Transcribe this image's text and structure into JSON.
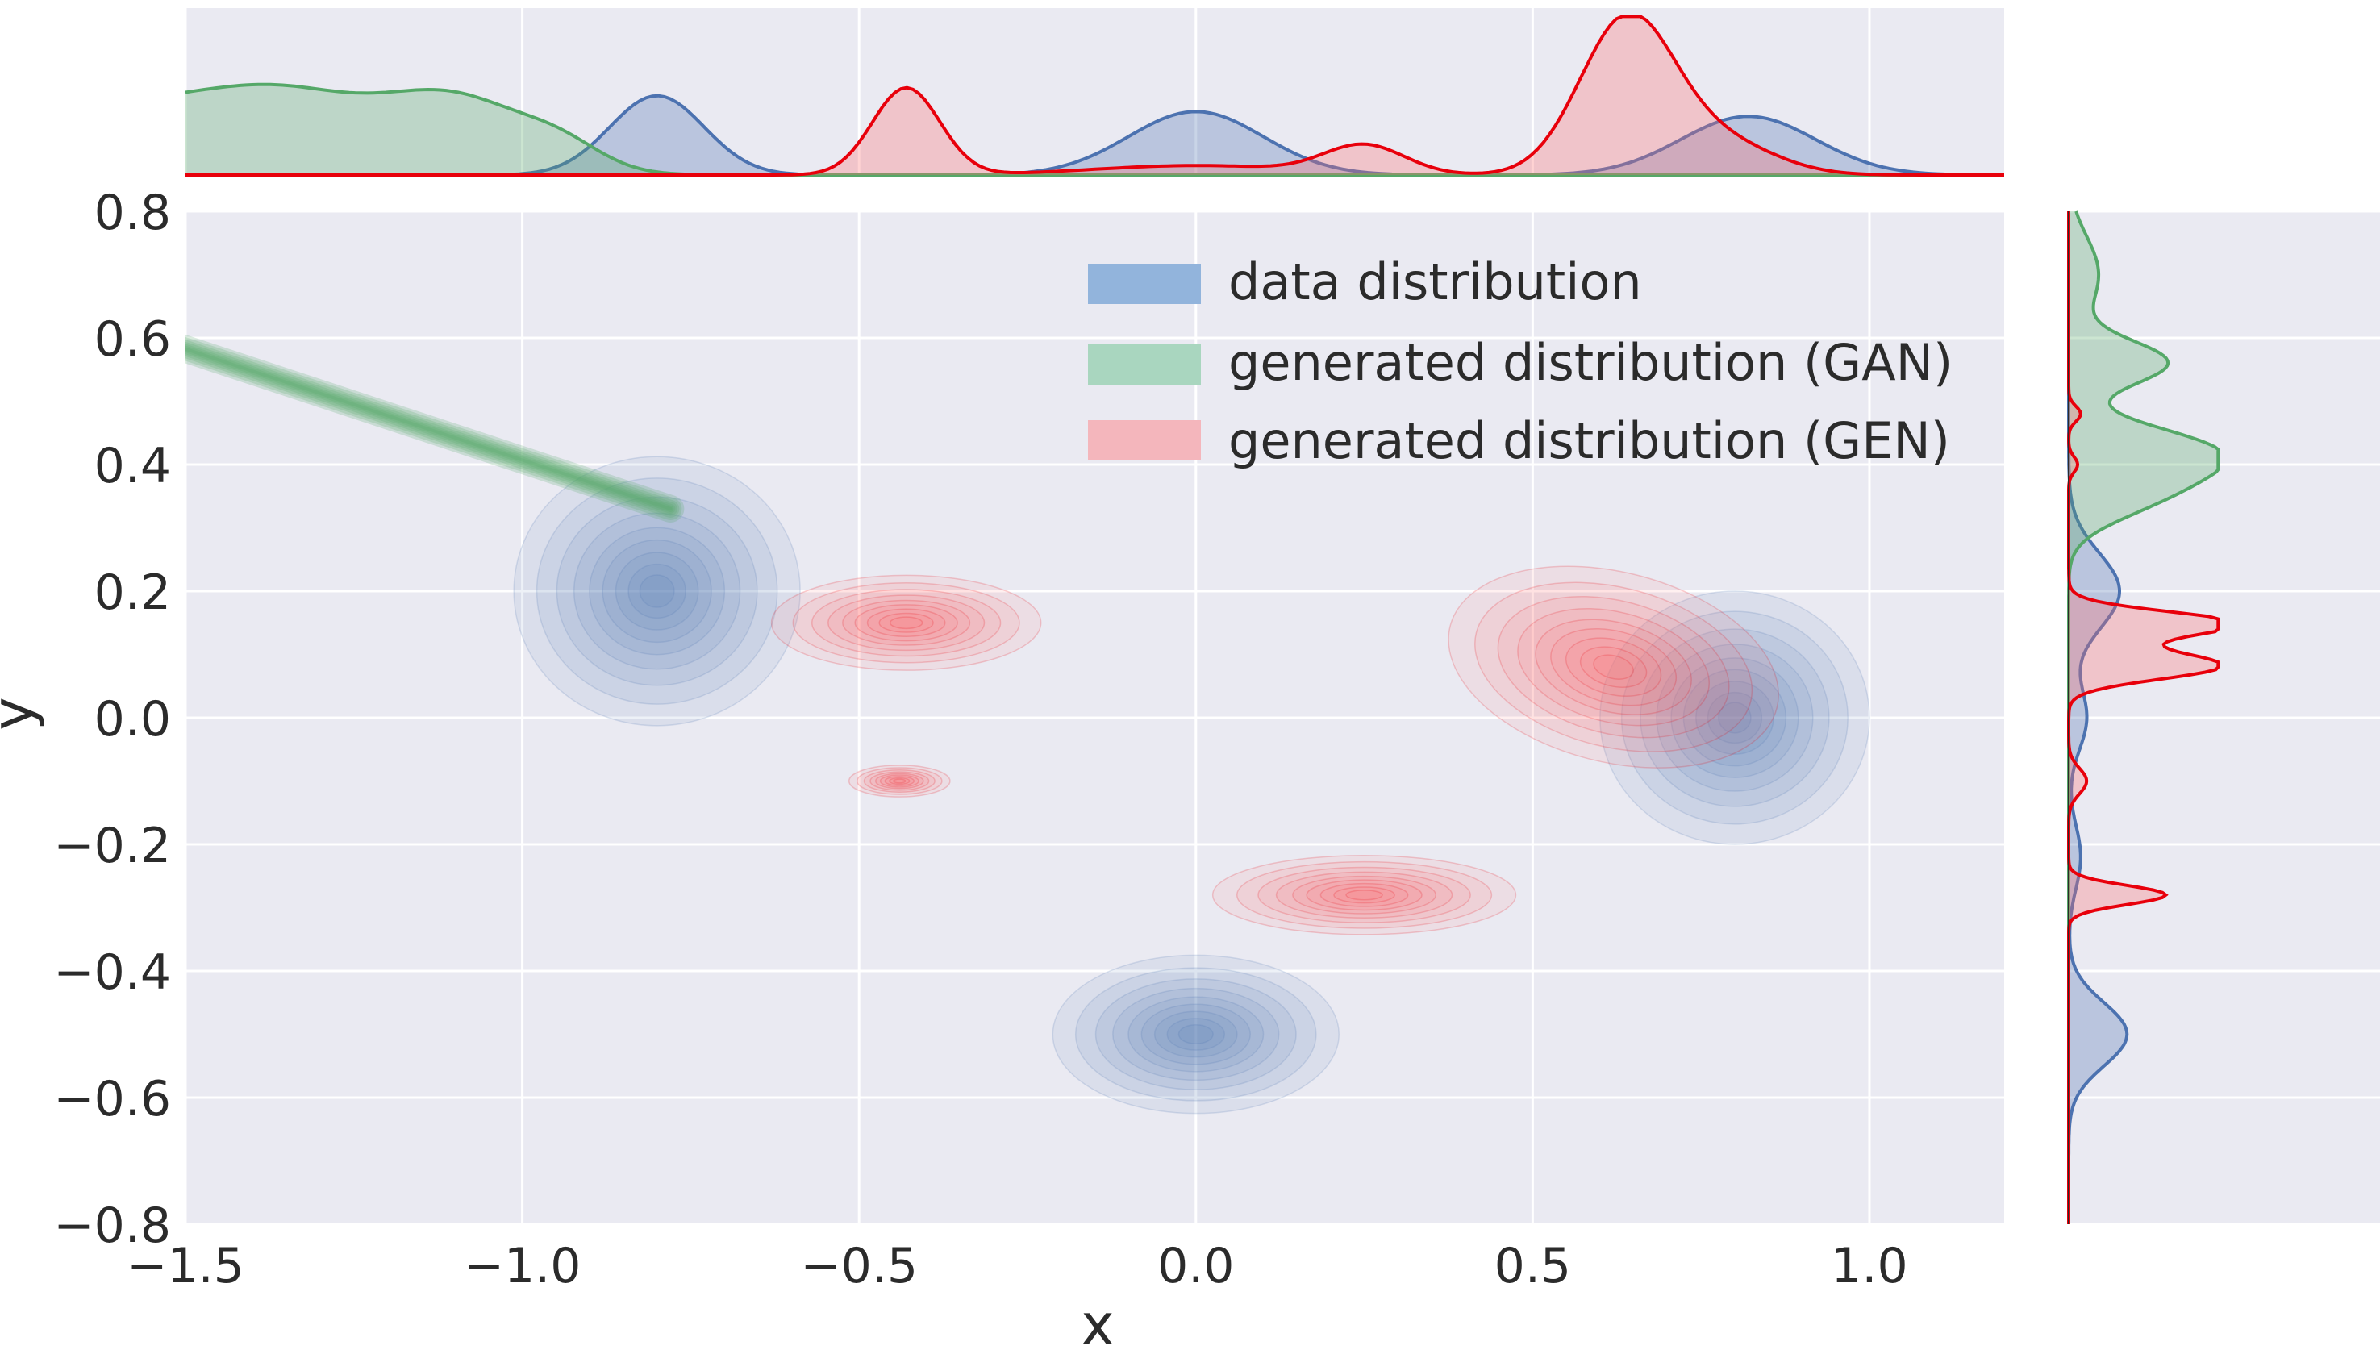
{
  "chart_data": {
    "type": "joint-kde",
    "xlabel": "x",
    "ylabel": "y",
    "xlim": [
      -1.5,
      1.2
    ],
    "ylim": [
      -0.8,
      0.8
    ],
    "x_ticks": [
      -1.5,
      -1.0,
      -0.5,
      0.0,
      0.5,
      1.0
    ],
    "x_tick_labels": [
      "−1.5",
      "−1.0",
      "−0.5",
      "0.0",
      "0.5",
      "1.0"
    ],
    "y_ticks": [
      0.8,
      0.6,
      0.4,
      0.2,
      0.0,
      -0.2,
      -0.4,
      -0.6,
      -0.8
    ],
    "y_tick_labels": [
      "0.8",
      "0.6",
      "0.4",
      "0.2",
      "0.0",
      "−0.2",
      "−0.4",
      "−0.6",
      "−0.8"
    ],
    "grid": true,
    "legend_position": "top-right",
    "series": [
      {
        "key": "data",
        "name": "data distribution",
        "fill": "#4c72b0",
        "line": "#4c72b0",
        "legend_fill": "#92b4dc",
        "clusters": [
          {
            "cx": -0.8,
            "cy": 0.2,
            "sx": 0.085,
            "sy": 0.085,
            "rot": 0
          },
          {
            "cx": 0.0,
            "cy": -0.5,
            "sx": 0.085,
            "sy": 0.05,
            "rot": 0
          },
          {
            "cx": 0.8,
            "cy": 0.0,
            "sx": 0.08,
            "sy": 0.08,
            "rot": 0
          }
        ],
        "marginal_x": [
          [
            -0.8,
            0.07,
            0.5
          ],
          [
            0.0,
            0.1,
            0.4
          ],
          [
            0.82,
            0.1,
            0.37
          ]
        ],
        "marginal_y": [
          [
            0.2,
            0.06,
            0.34
          ],
          [
            -0.5,
            0.05,
            0.39
          ],
          [
            0.0,
            0.05,
            0.12
          ],
          [
            -0.22,
            0.05,
            0.08
          ]
        ]
      },
      {
        "key": "gan",
        "name": "generated distribution (GAN)",
        "fill": "#55a868",
        "line": "#55a868",
        "legend_fill": "#a9d6bf",
        "segment": {
          "x0": -1.55,
          "y0": 0.6,
          "x1": -0.78,
          "y1": 0.33
        },
        "marginal_x": [
          [
            -1.58,
            0.13,
            0.38
          ],
          [
            -1.35,
            0.12,
            0.45
          ],
          [
            -1.1,
            0.11,
            0.47
          ],
          [
            -0.94,
            0.06,
            0.12
          ]
        ],
        "marginal_y": [
          [
            0.56,
            0.035,
            0.65
          ],
          [
            0.42,
            0.04,
            0.92
          ],
          [
            0.35,
            0.04,
            0.5
          ],
          [
            0.7,
            0.06,
            0.2
          ]
        ]
      },
      {
        "key": "gen",
        "name": "generated distribution (GEN)",
        "fill": "#ff6e6e",
        "line": "#e8000b",
        "legend_fill": "#f4b6bc",
        "clusters": [
          {
            "cx": -0.43,
            "cy": 0.15,
            "sx": 0.08,
            "sy": 0.03,
            "rot": 0
          },
          {
            "cx": 0.62,
            "cy": 0.08,
            "sx": 0.1,
            "sy": 0.06,
            "rot": -0.25
          },
          {
            "cx": 0.25,
            "cy": -0.28,
            "sx": 0.09,
            "sy": 0.025,
            "rot": 0
          },
          {
            "cx": -0.44,
            "cy": -0.1,
            "sx": 0.03,
            "sy": 0.01,
            "rot": 0
          }
        ],
        "marginal_x": [
          [
            -0.43,
            0.05,
            0.55
          ],
          [
            0.25,
            0.06,
            0.18
          ],
          [
            0.0,
            0.15,
            0.06
          ],
          [
            0.64,
            0.07,
            0.98
          ],
          [
            0.78,
            0.08,
            0.2
          ]
        ],
        "marginal_y": [
          [
            0.15,
            0.018,
            0.95
          ],
          [
            0.08,
            0.02,
            0.9
          ],
          [
            0.12,
            0.03,
            0.3
          ],
          [
            -0.28,
            0.015,
            0.65
          ],
          [
            -0.1,
            0.02,
            0.12
          ],
          [
            0.48,
            0.012,
            0.08
          ],
          [
            0.4,
            0.012,
            0.06
          ]
        ]
      }
    ]
  }
}
